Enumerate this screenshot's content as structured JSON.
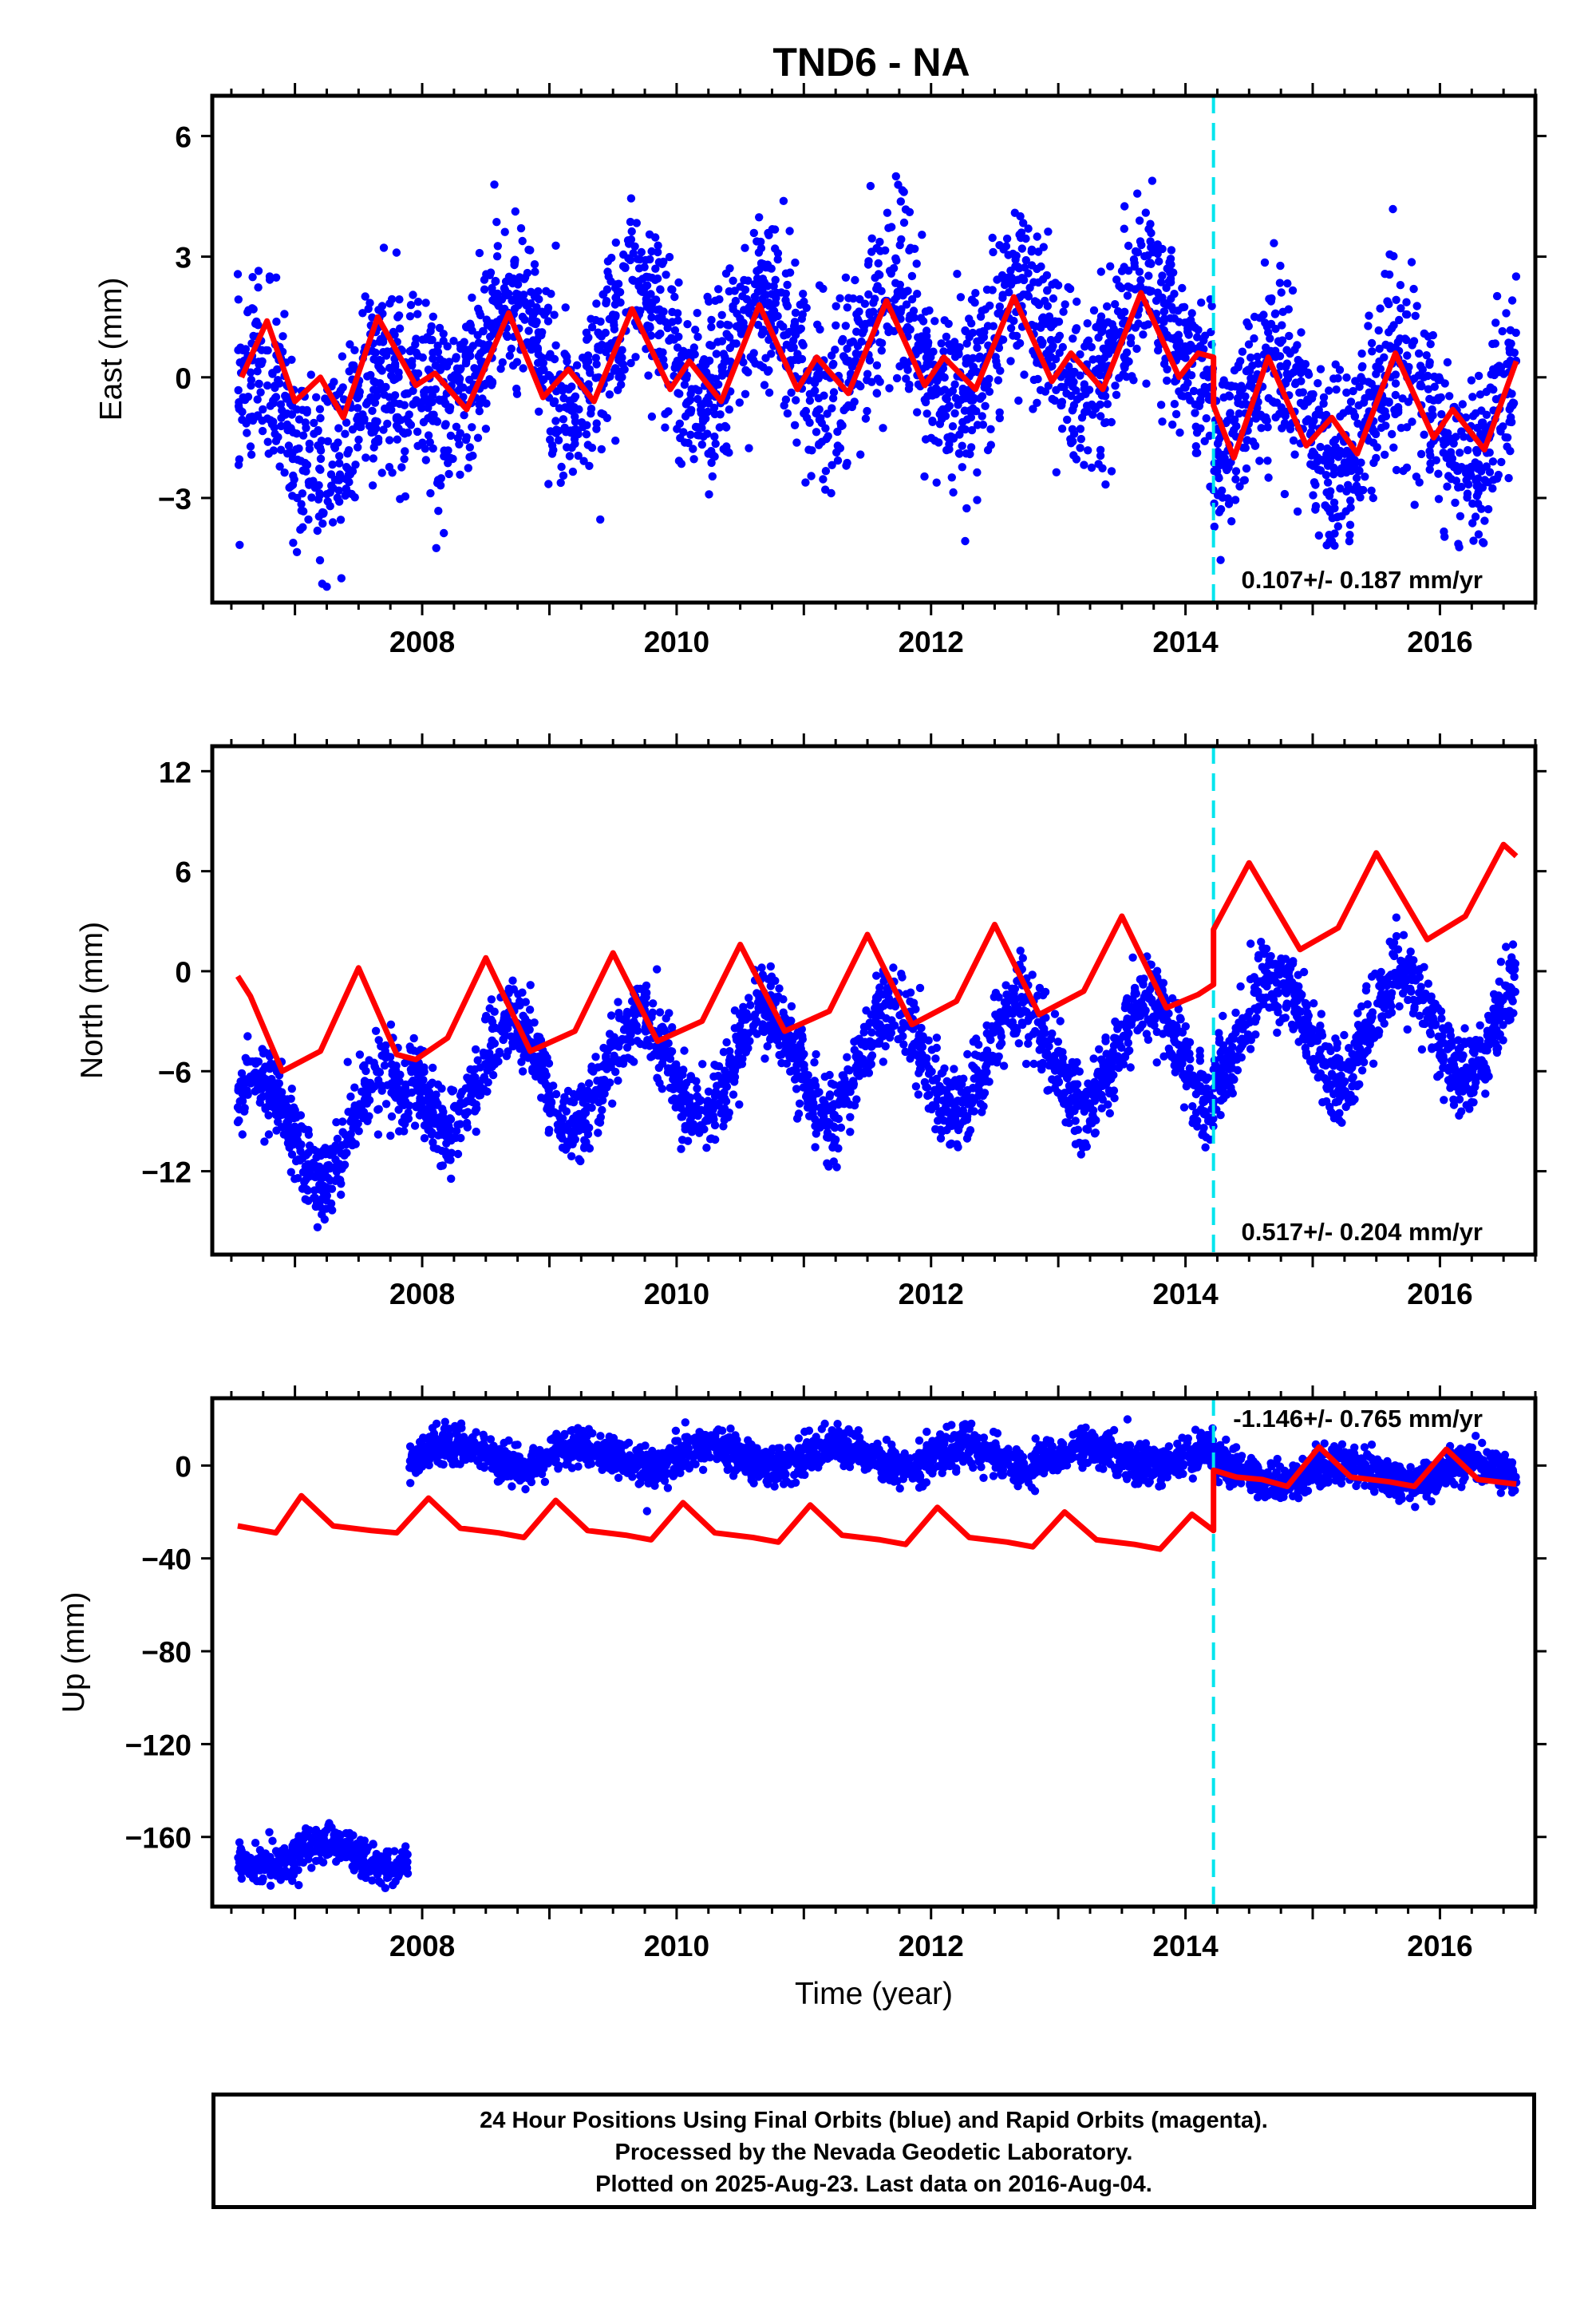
{
  "title": "TND6 - NA",
  "footer": {
    "line1": "24 Hour Positions Using Final Orbits (blue) and Rapid Orbits (magenta).",
    "line2": "Processed by the Nevada Geodetic Laboratory.",
    "line3": "Plotted on 2025-Aug-23. Last data on 2016-Aug-04."
  },
  "colors": {
    "points": "#0000ff",
    "model": "#ff0000",
    "break": "#00e5ee",
    "frame": "#000000"
  },
  "chart_data": [
    {
      "type": "scatter",
      "id": "east",
      "title": "TND6 - NA",
      "ylabel": "East (mm)",
      "xlabel": "",
      "xlim": [
        2006.35,
        2016.75
      ],
      "ylim": [
        -5.6,
        7.0
      ],
      "yticks": [
        -3,
        0,
        3,
        6
      ],
      "ytick_labels": [
        "−3",
        "0",
        "3",
        "6"
      ],
      "xticks": [
        2008,
        2010,
        2012,
        2014,
        2016
      ],
      "xtick_labels": [
        "2008",
        "2010",
        "2012",
        "2014",
        "2016"
      ],
      "break_x": 2014.22,
      "rate_text": "0.107+/- 0.187 mm/yr",
      "rate_position": "bottom-right",
      "series": [
        {
          "kind": "points",
          "model": {
            "trend": [
              -1.6,
              0.12
            ],
            "segments": [
              [
                2006.55,
                2007.9,
                -1.2
              ],
              [
                2007.9,
                2014.22,
                0.5
              ],
              [
                2014.22,
                2016.6,
                -1.0
              ]
            ],
            "amp": 1.3,
            "phase": 0.55,
            "noise": 1.1
          }
        },
        {
          "kind": "model-line",
          "points": [
            [
              2006.58,
              0.0
            ],
            [
              2006.78,
              1.4
            ],
            [
              2007.0,
              -0.6
            ],
            [
              2007.2,
              0.0
            ],
            [
              2007.38,
              -1.0
            ],
            [
              2007.65,
              1.5
            ],
            [
              2007.95,
              -0.2
            ],
            [
              2008.1,
              0.1
            ],
            [
              2008.35,
              -0.8
            ],
            [
              2008.68,
              1.6
            ],
            [
              2008.95,
              -0.5
            ],
            [
              2009.15,
              0.2
            ],
            [
              2009.35,
              -0.6
            ],
            [
              2009.65,
              1.7
            ],
            [
              2009.95,
              -0.3
            ],
            [
              2010.1,
              0.4
            ],
            [
              2010.35,
              -0.6
            ],
            [
              2010.65,
              1.8
            ],
            [
              2010.95,
              -0.3
            ],
            [
              2011.1,
              0.5
            ],
            [
              2011.35,
              -0.4
            ],
            [
              2011.65,
              1.9
            ],
            [
              2011.95,
              -0.2
            ],
            [
              2012.1,
              0.5
            ],
            [
              2012.35,
              -0.3
            ],
            [
              2012.65,
              2.0
            ],
            [
              2012.95,
              -0.1
            ],
            [
              2013.1,
              0.6
            ],
            [
              2013.35,
              -0.3
            ],
            [
              2013.65,
              2.1
            ],
            [
              2013.95,
              0.0
            ],
            [
              2014.1,
              0.6
            ],
            [
              2014.22,
              0.5
            ],
            [
              2014.22,
              -0.7
            ],
            [
              2014.38,
              -2.0
            ],
            [
              2014.65,
              0.5
            ],
            [
              2014.95,
              -1.7
            ],
            [
              2015.15,
              -1.0
            ],
            [
              2015.35,
              -1.9
            ],
            [
              2015.65,
              0.6
            ],
            [
              2015.95,
              -1.5
            ],
            [
              2016.1,
              -0.8
            ],
            [
              2016.35,
              -1.8
            ],
            [
              2016.6,
              0.4
            ]
          ]
        }
      ]
    },
    {
      "type": "scatter",
      "id": "north",
      "ylabel": "North (mm)",
      "xlabel": "",
      "xlim": [
        2006.35,
        2016.75
      ],
      "ylim": [
        -17.0,
        13.5
      ],
      "yticks": [
        -12,
        -6,
        0,
        6,
        12
      ],
      "ytick_labels": [
        "−12",
        "−6",
        "0",
        "6",
        "12"
      ],
      "xticks": [
        2008,
        2010,
        2012,
        2014,
        2016
      ],
      "xtick_labels": [
        "2008",
        "2010",
        "2012",
        "2014",
        "2016"
      ],
      "break_x": 2014.22,
      "rate_text": "0.517+/- 0.204 mm/yr",
      "rate_position": "bottom-right",
      "series": [
        {
          "kind": "points",
          "model": {
            "trend": [
              -9.5,
              0.5
            ],
            "segments": [
              [
                2006.55,
                2007.9,
                -9.5
              ],
              [
                2007.9,
                2014.22,
                -6.3
              ],
              [
                2014.22,
                2016.6,
                -3.6
              ]
            ],
            "amp": 3.2,
            "phase": 0.55,
            "noise": 1.2
          }
        },
        {
          "kind": "model-line",
          "points": [
            [
              2006.55,
              -0.3
            ],
            [
              2006.65,
              -1.5
            ],
            [
              2006.9,
              -6.0
            ],
            [
              2007.2,
              -4.8
            ],
            [
              2007.5,
              0.2
            ],
            [
              2007.8,
              -5.0
            ],
            [
              2007.95,
              -5.3
            ],
            [
              2008.2,
              -4.0
            ],
            [
              2008.5,
              0.8
            ],
            [
              2008.85,
              -4.8
            ],
            [
              2009.2,
              -3.6
            ],
            [
              2009.5,
              1.1
            ],
            [
              2009.85,
              -4.2
            ],
            [
              2010.2,
              -3.0
            ],
            [
              2010.5,
              1.6
            ],
            [
              2010.85,
              -3.6
            ],
            [
              2011.2,
              -2.4
            ],
            [
              2011.5,
              2.2
            ],
            [
              2011.85,
              -3.2
            ],
            [
              2012.2,
              -1.8
            ],
            [
              2012.5,
              2.8
            ],
            [
              2012.85,
              -2.6
            ],
            [
              2013.2,
              -1.2
            ],
            [
              2013.5,
              3.3
            ],
            [
              2013.85,
              -2.2
            ],
            [
              2014.1,
              -1.4
            ],
            [
              2014.22,
              -0.8
            ],
            [
              2014.22,
              2.5
            ],
            [
              2014.5,
              6.5
            ],
            [
              2014.9,
              1.3
            ],
            [
              2015.2,
              2.6
            ],
            [
              2015.5,
              7.1
            ],
            [
              2015.9,
              1.9
            ],
            [
              2016.2,
              3.3
            ],
            [
              2016.5,
              7.6
            ],
            [
              2016.6,
              6.9
            ]
          ]
        }
      ]
    },
    {
      "type": "scatter",
      "id": "up",
      "ylabel": "Up (mm)",
      "xlabel": "Time (year)",
      "xlim": [
        2006.35,
        2016.75
      ],
      "ylim": [
        -190,
        29
      ],
      "yticks": [
        -160,
        -120,
        -80,
        -40,
        0
      ],
      "ytick_labels": [
        "−160",
        "−120",
        "−80",
        "−40",
        "0"
      ],
      "xticks": [
        2008,
        2010,
        2012,
        2014,
        2016
      ],
      "xtick_labels": [
        "2008",
        "2010",
        "2012",
        "2014",
        "2016"
      ],
      "break_x": 2014.22,
      "rate_text": "-1.146+/- 0.765 mm/yr",
      "rate_position": "top-right",
      "series": [
        {
          "kind": "points",
          "model": {
            "trend": [
              0,
              0
            ],
            "segments": [
              [
                2006.55,
                2007.9,
                -168
              ],
              [
                2007.9,
                2014.22,
                4
              ],
              [
                2014.22,
                2016.6,
                -3
              ]
            ],
            "amp": 4.5,
            "phase": 0.0,
            "noise": 4.0
          }
        },
        {
          "kind": "model-line",
          "points": [
            [
              2006.55,
              -26
            ],
            [
              2006.85,
              -29
            ],
            [
              2007.05,
              -13
            ],
            [
              2007.3,
              -26
            ],
            [
              2007.6,
              -28
            ],
            [
              2007.8,
              -29
            ],
            [
              2008.05,
              -14
            ],
            [
              2008.3,
              -27
            ],
            [
              2008.6,
              -29
            ],
            [
              2008.8,
              -31
            ],
            [
              2009.05,
              -15
            ],
            [
              2009.3,
              -28
            ],
            [
              2009.6,
              -30
            ],
            [
              2009.8,
              -32
            ],
            [
              2010.05,
              -16
            ],
            [
              2010.3,
              -29
            ],
            [
              2010.6,
              -31
            ],
            [
              2010.8,
              -33
            ],
            [
              2011.05,
              -17
            ],
            [
              2011.3,
              -30
            ],
            [
              2011.6,
              -32
            ],
            [
              2011.8,
              -34
            ],
            [
              2012.05,
              -18
            ],
            [
              2012.3,
              -31
            ],
            [
              2012.6,
              -33
            ],
            [
              2012.8,
              -35
            ],
            [
              2013.05,
              -20
            ],
            [
              2013.3,
              -32
            ],
            [
              2013.6,
              -34
            ],
            [
              2013.8,
              -36
            ],
            [
              2014.05,
              -21
            ],
            [
              2014.22,
              -28
            ],
            [
              2014.22,
              -2
            ],
            [
              2014.4,
              -5
            ],
            [
              2014.6,
              -6
            ],
            [
              2014.8,
              -9
            ],
            [
              2015.05,
              8
            ],
            [
              2015.3,
              -5
            ],
            [
              2015.6,
              -7
            ],
            [
              2015.8,
              -9
            ],
            [
              2016.05,
              7
            ],
            [
              2016.3,
              -6
            ],
            [
              2016.6,
              -8
            ]
          ]
        }
      ]
    }
  ]
}
